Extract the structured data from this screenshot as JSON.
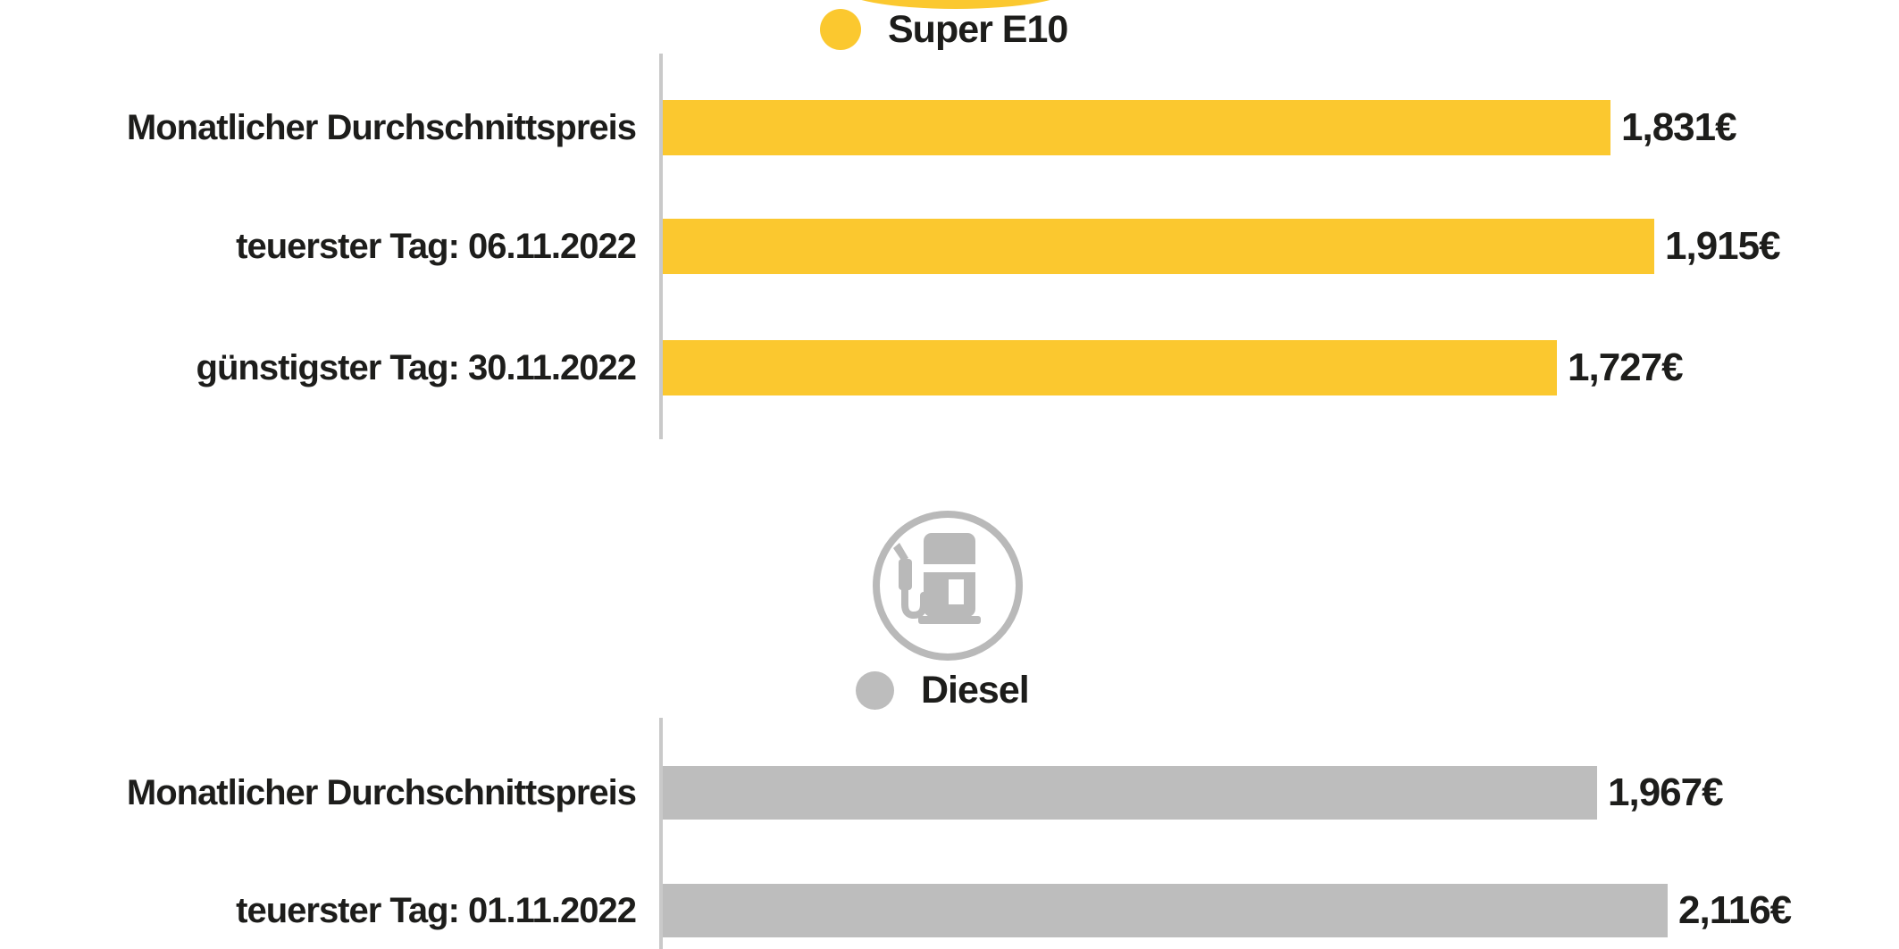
{
  "colors": {
    "super_e10_yellow": "#FBC82F",
    "diesel_gray": "#BDBDBD",
    "axis_gray": "#C9C9C9",
    "icon_gray": "#B9B9B9",
    "text": "#1D1D1B",
    "background": "#FFFFFF"
  },
  "icons": {
    "top_partial": "super-e10-circle-partial",
    "diesel_circle": "fuel-pump-icon"
  },
  "chart_data": [
    {
      "type": "bar",
      "orientation": "horizontal",
      "legend": "Super E10",
      "color": "#FBC82F",
      "categories": [
        "Monatlicher Durchschnittspreis",
        "teuerster Tag: 06.11.2022",
        "günstigster Tag: 30.11.2022"
      ],
      "values": [
        1.831,
        1.915,
        1.727
      ],
      "value_labels": [
        "1,831€",
        "1,915€",
        "1,727€"
      ],
      "xlim": [
        0,
        1.915
      ],
      "grid": false,
      "legend_position": "top-center"
    },
    {
      "type": "bar",
      "orientation": "horizontal",
      "legend": "Diesel",
      "color": "#BDBDBD",
      "categories": [
        "Monatlicher Durchschnittspreis",
        "teuerster Tag: 01.11.2022"
      ],
      "values": [
        1.967,
        2.116
      ],
      "value_labels": [
        "1,967€",
        "2,116€"
      ],
      "xlim": [
        0,
        2.116
      ],
      "grid": false,
      "legend_position": "top-center"
    }
  ]
}
